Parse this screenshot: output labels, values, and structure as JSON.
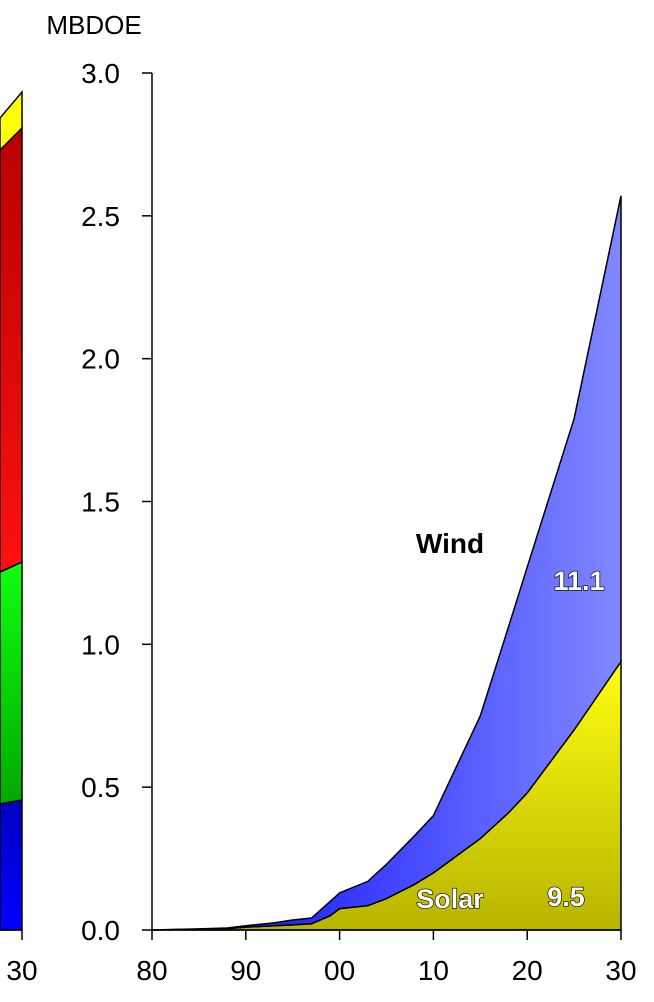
{
  "chart_data": [
    {
      "type": "area",
      "partial": true,
      "x_tick_labels": [
        "30"
      ],
      "series": [
        {
          "color": "#0000c8"
        },
        {
          "color": "#00c800"
        },
        {
          "color": "#e00000"
        },
        {
          "color": "#ffff00"
        }
      ]
    },
    {
      "type": "area",
      "stacked": true,
      "ylabel": "MBDOE",
      "ylim": [
        0,
        3.0
      ],
      "y_tick_labels": [
        "0.0",
        "0.5",
        "1.0",
        "1.5",
        "2.0",
        "2.5",
        "3.0"
      ],
      "x_tick_labels": [
        "80",
        "90",
        "00",
        "10",
        "20",
        "30"
      ],
      "x": [
        1980,
        1985,
        1988,
        1990,
        1993,
        1995,
        1997,
        1999,
        2000,
        2003,
        2005,
        2008,
        2010,
        2015,
        2018,
        2020,
        2025,
        2030
      ],
      "series": [
        {
          "name": "Solar",
          "color": "#e6e600",
          "growth_label": "9.5",
          "values": [
            0,
            0.003,
            0.005,
            0.01,
            0.015,
            0.018,
            0.022,
            0.05,
            0.075,
            0.085,
            0.11,
            0.16,
            0.2,
            0.32,
            0.41,
            0.48,
            0.7,
            0.94
          ]
        },
        {
          "name": "Wind",
          "color": "#2020ff",
          "growth_label": "11.1",
          "values": [
            0,
            0.001,
            0.002,
            0.005,
            0.01,
            0.017,
            0.02,
            0.05,
            0.055,
            0.085,
            0.12,
            0.17,
            0.2,
            0.43,
            0.65,
            0.79,
            1.09,
            1.63
          ]
        }
      ]
    }
  ]
}
